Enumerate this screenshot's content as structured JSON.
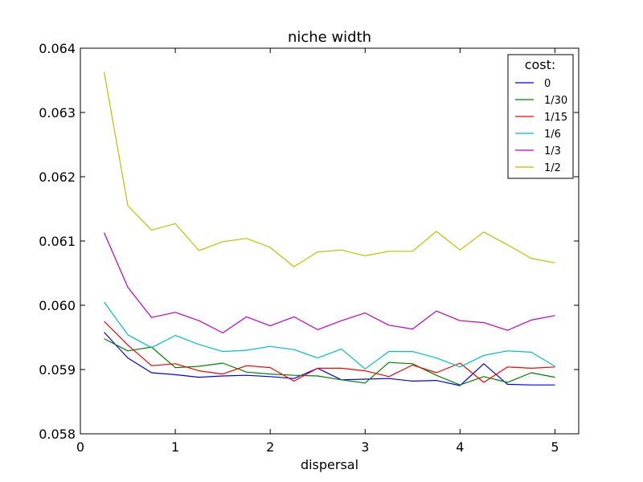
{
  "chart_data": {
    "type": "line",
    "title": "niche width",
    "xlabel": "dispersal",
    "ylabel": "",
    "xlim": [
      0,
      5.25
    ],
    "ylim": [
      0.058,
      0.064
    ],
    "x_ticks": [
      0,
      1,
      2,
      3,
      4,
      5
    ],
    "x_tick_labels": [
      "0",
      "1",
      "2",
      "3",
      "4",
      "5"
    ],
    "y_ticks": [
      0.058,
      0.059,
      0.06,
      0.061,
      0.062,
      0.063,
      0.064
    ],
    "y_tick_labels": [
      "0.058",
      "0.059",
      "0.060",
      "0.061",
      "0.062",
      "0.063",
      "0.064"
    ],
    "grid": false,
    "legend": {
      "title": "cost:",
      "placement": "top-right"
    },
    "x": [
      0.25,
      0.5,
      0.75,
      1.0,
      1.25,
      1.5,
      1.75,
      2.0,
      2.25,
      2.5,
      2.75,
      3.0,
      3.25,
      3.5,
      3.75,
      4.0,
      4.25,
      4.5,
      4.75,
      5.0
    ],
    "series": [
      {
        "name": "0",
        "color": "#0000ff",
        "values": [
          0.05958,
          0.05918,
          0.05895,
          0.05892,
          0.05888,
          0.0589,
          0.05891,
          0.05889,
          0.05886,
          0.05902,
          0.05884,
          0.05885,
          0.05886,
          0.05882,
          0.05883,
          0.05875,
          0.05909,
          0.05877,
          0.05876,
          0.05876
        ]
      },
      {
        "name": "1/30",
        "color": "#008000",
        "values": [
          0.05948,
          0.05929,
          0.05935,
          0.05903,
          0.05905,
          0.0591,
          0.05896,
          0.05893,
          0.05891,
          0.0589,
          0.05884,
          0.05879,
          0.05911,
          0.05909,
          0.05891,
          0.05876,
          0.05889,
          0.0588,
          0.05895,
          0.05888
        ]
      },
      {
        "name": "1/15",
        "color": "#ff0000",
        "values": [
          0.05975,
          0.05938,
          0.05906,
          0.05909,
          0.05898,
          0.05893,
          0.05906,
          0.05903,
          0.05882,
          0.05902,
          0.05902,
          0.05898,
          0.05889,
          0.05907,
          0.05895,
          0.0591,
          0.0588,
          0.05904,
          0.05902,
          0.05904
        ]
      },
      {
        "name": "1/6",
        "color": "#00bfbf",
        "values": [
          0.06005,
          0.05954,
          0.05934,
          0.05953,
          0.05939,
          0.05928,
          0.0593,
          0.05936,
          0.05931,
          0.05918,
          0.05932,
          0.05901,
          0.05928,
          0.05928,
          0.05918,
          0.05904,
          0.05922,
          0.05929,
          0.05927,
          0.05905
        ]
      },
      {
        "name": "1/3",
        "color": "#bf00bf",
        "values": [
          0.06113,
          0.06028,
          0.05981,
          0.05989,
          0.05976,
          0.05957,
          0.05982,
          0.05968,
          0.05982,
          0.05962,
          0.05976,
          0.05988,
          0.05969,
          0.05963,
          0.05991,
          0.05976,
          0.05973,
          0.05961,
          0.05977,
          0.05984
        ]
      },
      {
        "name": "1/2",
        "color": "#bfbf00",
        "values": [
          0.06363,
          0.06155,
          0.06117,
          0.06127,
          0.06085,
          0.06099,
          0.06104,
          0.0609,
          0.0606,
          0.06083,
          0.06086,
          0.06077,
          0.06084,
          0.06084,
          0.06115,
          0.06086,
          0.06114,
          0.06094,
          0.06073,
          0.06066
        ]
      }
    ]
  }
}
